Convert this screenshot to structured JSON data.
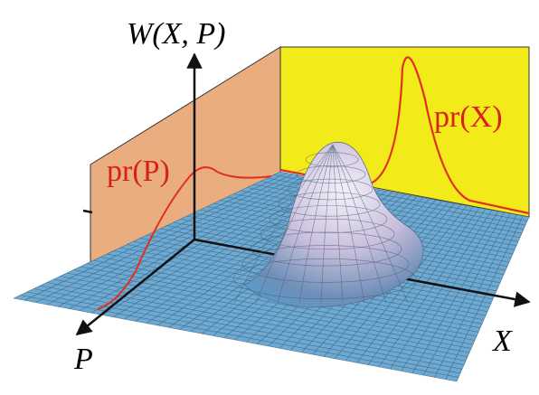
{
  "labels": {
    "w_axis": "W(X, P)",
    "pr_p": "pr(P)",
    "pr_x": "pr(X)",
    "x_axis": "X",
    "p_axis": "P"
  }
}
